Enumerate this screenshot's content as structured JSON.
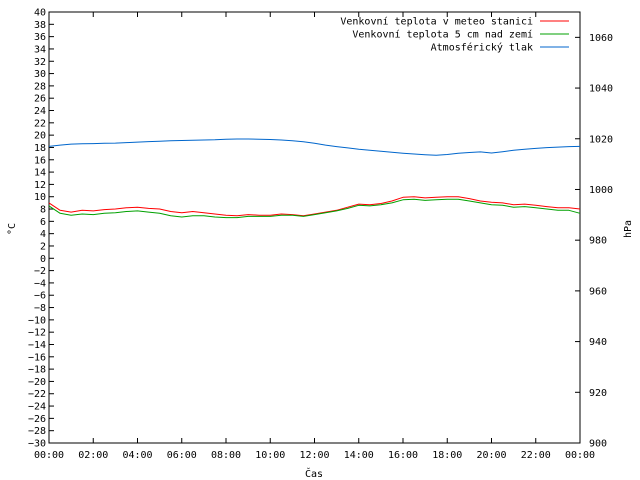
{
  "chart_data": {
    "type": "line",
    "xlabel": "Čas",
    "ylabel_left": "°C",
    "ylabel_right": "hPa",
    "x_ticks": [
      "00:00",
      "02:00",
      "04:00",
      "06:00",
      "08:00",
      "10:00",
      "12:00",
      "14:00",
      "16:00",
      "18:00",
      "20:00",
      "22:00",
      "00:00"
    ],
    "x_range_hours": [
      0,
      24
    ],
    "ylim_left": [
      -30,
      40
    ],
    "ylim_right": [
      900,
      1070
    ],
    "y_left_ticks": [
      -30,
      -28,
      -26,
      -24,
      -22,
      -20,
      -18,
      -16,
      -14,
      -12,
      -10,
      -8,
      -6,
      -4,
      -2,
      0,
      2,
      4,
      6,
      8,
      10,
      12,
      14,
      16,
      18,
      20,
      22,
      24,
      26,
      28,
      30,
      32,
      34,
      36,
      38,
      40
    ],
    "y_right_ticks": [
      900,
      920,
      940,
      960,
      980,
      1000,
      1020,
      1040,
      1060
    ],
    "grid": false,
    "legend_position": "top-right",
    "series": [
      {
        "name": "Venkovní teplota v meteo stanici",
        "color": "#ff0000",
        "axis": "left",
        "x": [
          0,
          0.5,
          1,
          1.5,
          2,
          2.5,
          3,
          3.5,
          4,
          4.5,
          5,
          5.5,
          6,
          6.5,
          7,
          7.5,
          8,
          8.5,
          9,
          9.5,
          10,
          10.5,
          11,
          11.5,
          12,
          12.5,
          13,
          13.5,
          14,
          14.5,
          15,
          15.5,
          16,
          16.5,
          17,
          17.5,
          18,
          18.5,
          19,
          19.5,
          20,
          20.5,
          21,
          21.5,
          22,
          22.5,
          23,
          23.5,
          24
        ],
        "values": [
          9.0,
          7.8,
          7.5,
          7.8,
          7.7,
          7.9,
          8.0,
          8.2,
          8.3,
          8.1,
          8.0,
          7.6,
          7.4,
          7.6,
          7.4,
          7.2,
          7.0,
          6.9,
          7.1,
          7.0,
          7.0,
          7.2,
          7.1,
          6.9,
          7.2,
          7.5,
          7.8,
          8.3,
          8.8,
          8.7,
          8.9,
          9.3,
          9.9,
          10.0,
          9.8,
          9.9,
          10.0,
          10.0,
          9.7,
          9.3,
          9.1,
          9.0,
          8.7,
          8.8,
          8.6,
          8.4,
          8.2,
          8.2,
          8.0
        ]
      },
      {
        "name": "Venkovní teplota 5 cm nad zemí",
        "color": "#00a000",
        "axis": "left",
        "x": [
          0,
          0.5,
          1,
          1.5,
          2,
          2.5,
          3,
          3.5,
          4,
          4.5,
          5,
          5.5,
          6,
          6.5,
          7,
          7.5,
          8,
          8.5,
          9,
          9.5,
          10,
          10.5,
          11,
          11.5,
          12,
          12.5,
          13,
          13.5,
          14,
          14.5,
          15,
          15.5,
          16,
          16.5,
          17,
          17.5,
          18,
          18.5,
          19,
          19.5,
          20,
          20.5,
          21,
          21.5,
          22,
          22.5,
          23,
          23.5,
          24
        ],
        "values": [
          8.5,
          7.3,
          7.0,
          7.2,
          7.1,
          7.3,
          7.4,
          7.6,
          7.7,
          7.5,
          7.3,
          6.9,
          6.7,
          6.9,
          6.9,
          6.7,
          6.6,
          6.6,
          6.8,
          6.8,
          6.8,
          7.0,
          7.0,
          6.8,
          7.1,
          7.4,
          7.7,
          8.1,
          8.6,
          8.5,
          8.7,
          9.0,
          9.5,
          9.6,
          9.4,
          9.5,
          9.6,
          9.6,
          9.3,
          9.0,
          8.7,
          8.6,
          8.3,
          8.4,
          8.2,
          8.0,
          7.8,
          7.8,
          7.3
        ]
      },
      {
        "name": "Atmosférický tlak",
        "color": "#0066cc",
        "axis": "right",
        "x": [
          0,
          0.5,
          1,
          1.5,
          2,
          2.5,
          3,
          3.5,
          4,
          4.5,
          5,
          5.5,
          6,
          6.5,
          7,
          7.5,
          8,
          8.5,
          9,
          9.5,
          10,
          10.5,
          11,
          11.5,
          12,
          12.5,
          13,
          13.5,
          14,
          14.5,
          15,
          15.5,
          16,
          16.5,
          17,
          17.5,
          18,
          18.5,
          19,
          19.5,
          20,
          20.5,
          21,
          21.5,
          22,
          22.5,
          23,
          23.5,
          24
        ],
        "values": [
          1017.0,
          1017.5,
          1017.9,
          1018.0,
          1018.1,
          1018.2,
          1018.3,
          1018.5,
          1018.7,
          1018.9,
          1019.0,
          1019.2,
          1019.3,
          1019.4,
          1019.5,
          1019.6,
          1019.8,
          1019.9,
          1019.9,
          1019.8,
          1019.7,
          1019.5,
          1019.2,
          1018.8,
          1018.2,
          1017.5,
          1016.9,
          1016.4,
          1015.9,
          1015.5,
          1015.1,
          1014.7,
          1014.3,
          1014.0,
          1013.7,
          1013.5,
          1013.8,
          1014.3,
          1014.6,
          1014.8,
          1014.4,
          1014.9,
          1015.5,
          1015.9,
          1016.2,
          1016.5,
          1016.7,
          1016.9,
          1017.0
        ]
      }
    ]
  }
}
